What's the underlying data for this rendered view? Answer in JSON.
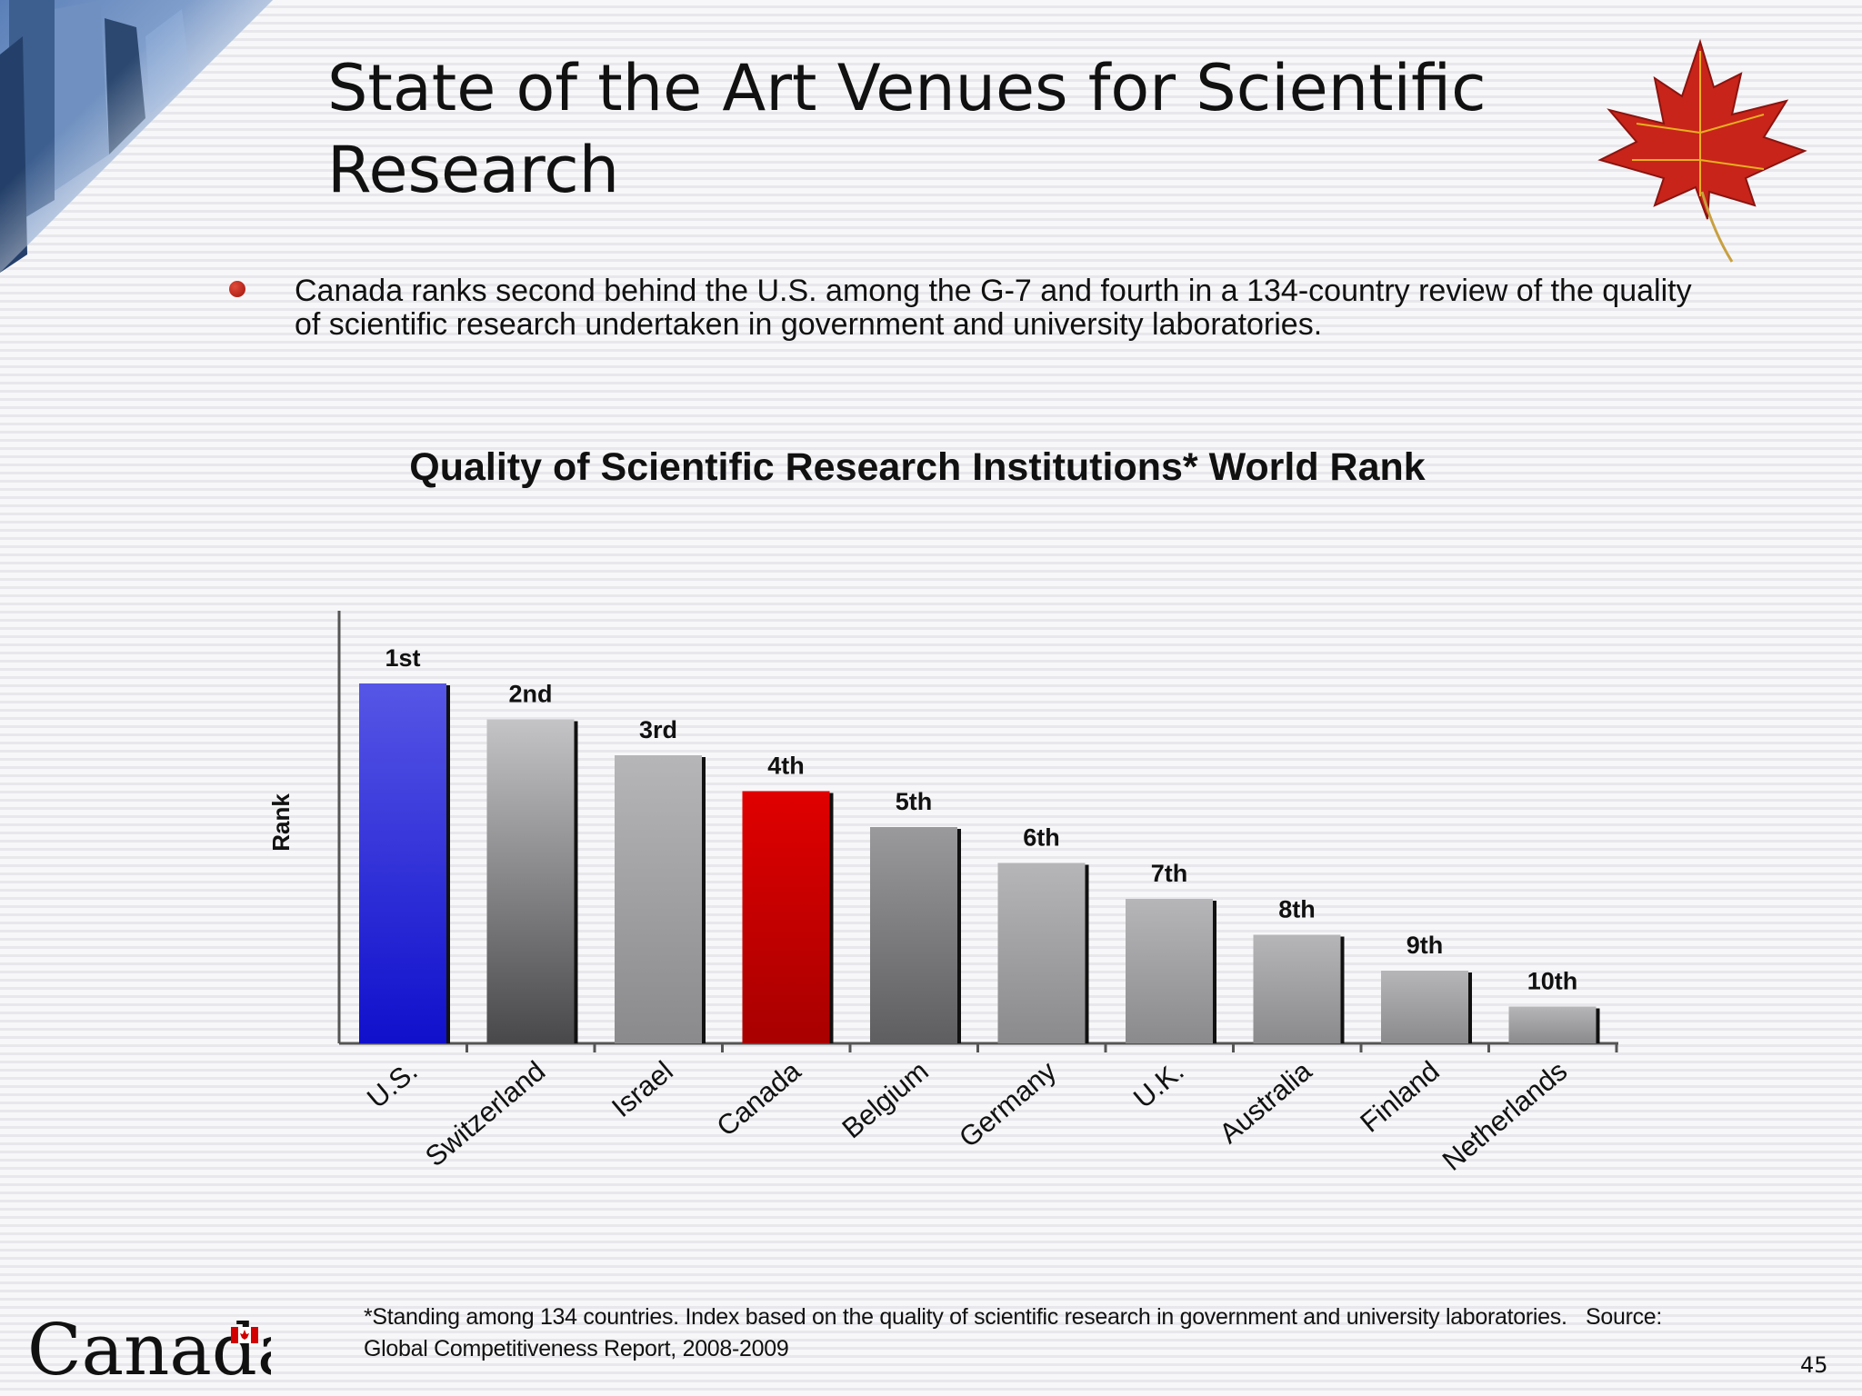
{
  "slide": {
    "title": "State of the Art Venues for Scientific Research",
    "bullet": "Canada ranks second behind the U.S. among the G-7 and fourth in a 134-country review of the quality of scientific research undertaken in government and university laboratories.",
    "footnote": "*Standing among 134 countries. Index based on the quality of scientific research in government and university laboratories.",
    "source_label": "Source:",
    "source": "Global Competitiveness Report, 2008-2009",
    "wordmark": "Canada",
    "page_number": "45"
  },
  "chart_data": {
    "type": "bar",
    "title": "Quality of Scientific Research Institutions* World Rank",
    "ylabel": "Rank",
    "categories": [
      "U.S.",
      "Switzerland",
      "Israel",
      "Canada",
      "Belgium",
      "Germany",
      "U.K.",
      "Australia",
      "Finland",
      "Netherlands"
    ],
    "ranks": [
      1,
      2,
      3,
      4,
      5,
      6,
      7,
      8,
      9,
      10
    ],
    "data_labels": [
      "1st",
      "2nd",
      "3rd",
      "4th",
      "5th",
      "6th",
      "7th",
      "8th",
      "9th",
      "10th"
    ],
    "bar_colors": [
      "blue",
      "gray",
      "gray",
      "red",
      "gray",
      "gray",
      "gray",
      "gray",
      "gray",
      "gray"
    ],
    "rank_axis": "reversed",
    "grid": false,
    "legend": "none",
    "colors": {
      "highlight_us": "#2424d8",
      "highlight_canada": "#cc0000",
      "other": "#9a9a9c"
    }
  }
}
